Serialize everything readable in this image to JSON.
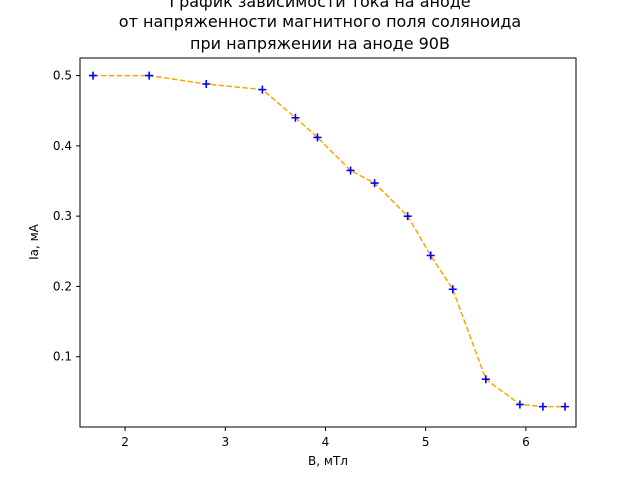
{
  "chart_data": {
    "type": "line",
    "title_lines": [
      "График зависимости тока на аноде",
      "от напряженности магнитного поля соляноида",
      "при напряжении на аноде 90В"
    ],
    "xlabel": "B, мТл",
    "ylabel": "Ia, мА",
    "xlim": [
      1.55,
      6.5
    ],
    "ylim": [
      0.0,
      0.525
    ],
    "xticks": [
      "2",
      "3",
      "4",
      "5",
      "6"
    ],
    "yticks": [
      "0.1",
      "0.2",
      "0.3",
      "0.4",
      "0.5"
    ],
    "grid": false,
    "series": [
      {
        "line_style": "dashed",
        "line_color": "#ffa500",
        "marker": "+",
        "marker_color": "#0000ff",
        "x": [
          1.68,
          2.24,
          2.81,
          3.37,
          3.7,
          3.92,
          4.25,
          4.49,
          4.82,
          5.05,
          5.27,
          5.6,
          5.94,
          6.17,
          6.39
        ],
        "y": [
          0.5,
          0.5,
          0.488,
          0.48,
          0.44,
          0.412,
          0.365,
          0.347,
          0.3,
          0.244,
          0.196,
          0.068,
          0.032,
          0.029,
          0.029
        ]
      }
    ]
  }
}
